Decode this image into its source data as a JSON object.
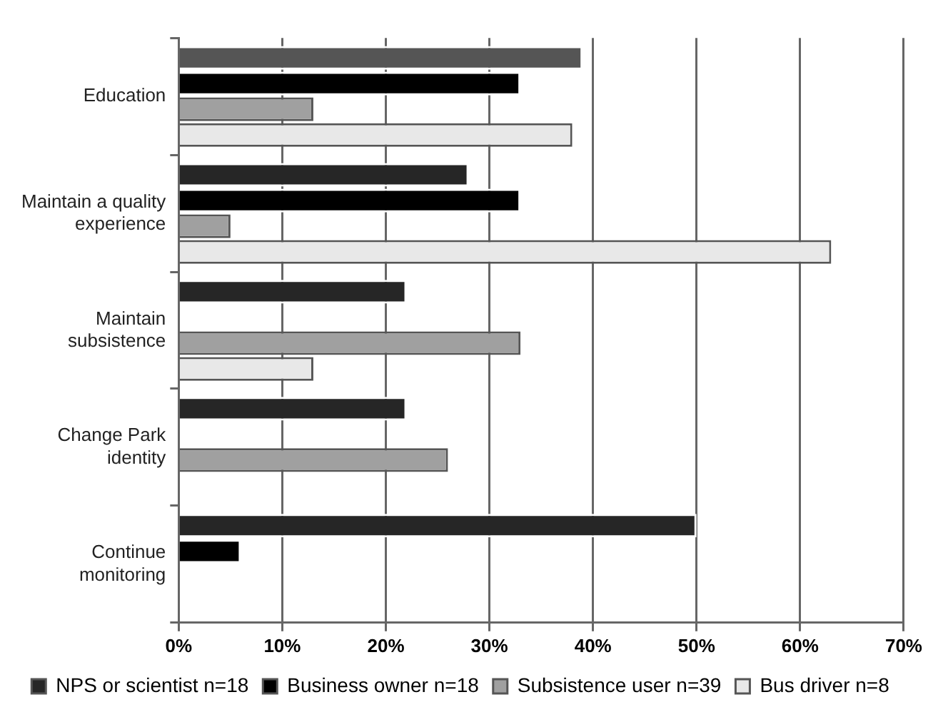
{
  "chart_data": {
    "type": "bar",
    "orientation": "horizontal",
    "categories": [
      "Education",
      "Maintain a quality experience",
      "Maintain subsistence",
      "Change Park identity",
      "Continue monitoring"
    ],
    "series": [
      {
        "name": "NPS or scientist n=18",
        "color": "#262626",
        "colors": [
          "#555555",
          "#262626",
          "#262626",
          "#262626",
          "#262626"
        ],
        "values": [
          39,
          28,
          22,
          22,
          50
        ]
      },
      {
        "name": "Business owner n=18",
        "color": "#000000",
        "values": [
          33,
          33,
          null,
          null,
          6
        ]
      },
      {
        "name": "Subsistence user n=39",
        "color": "#a0a0a0",
        "values": [
          13,
          5,
          33,
          26,
          null
        ]
      },
      {
        "name": "Bus driver n=8",
        "color": "#e8e8e8",
        "values": [
          38,
          63,
          13,
          null,
          null
        ]
      }
    ],
    "xlim": [
      0,
      70
    ],
    "xticks": [
      {
        "value": 0,
        "label": "0%"
      },
      {
        "value": 10,
        "label": "10%"
      },
      {
        "value": 20,
        "label": "20%"
      },
      {
        "value": 30,
        "label": "30%"
      },
      {
        "value": 40,
        "label": "40%"
      },
      {
        "value": 50,
        "label": "50%"
      },
      {
        "value": 60,
        "label": "60%"
      },
      {
        "value": 70,
        "label": "70%"
      }
    ],
    "grid": "x",
    "legend": "bottom"
  }
}
